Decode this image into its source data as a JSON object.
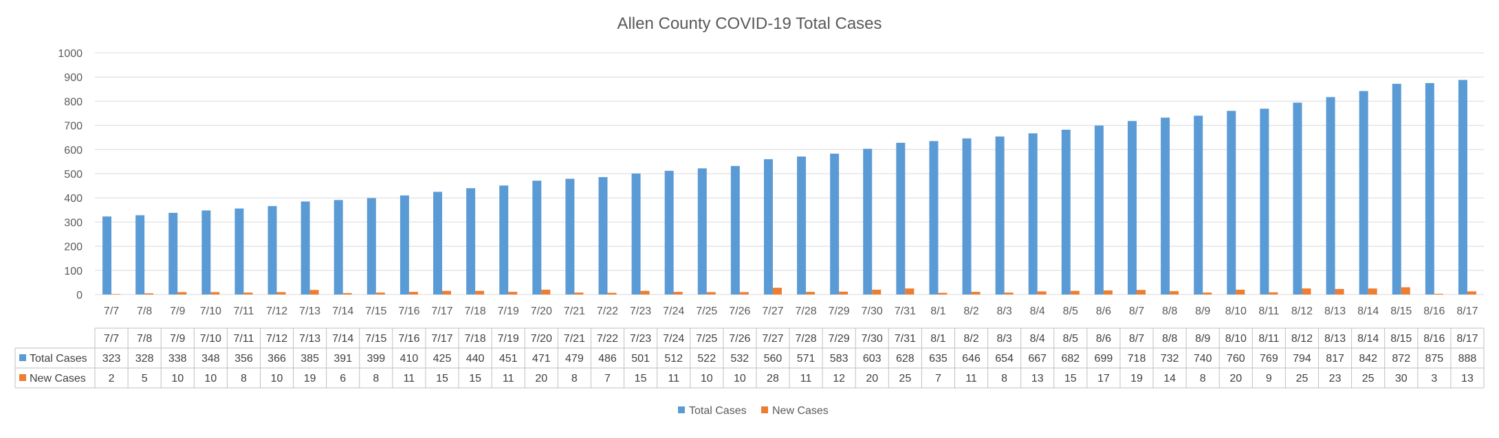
{
  "chart_data": {
    "type": "bar",
    "title": "Allen County COVID-19 Total Cases",
    "xlabel": "",
    "ylabel": "",
    "ylim": [
      0,
      1000
    ],
    "yticks": [
      0,
      100,
      200,
      300,
      400,
      500,
      600,
      700,
      800,
      900,
      1000
    ],
    "grid": true,
    "legend_position": "bottom",
    "categories": [
      "7/7",
      "7/8",
      "7/9",
      "7/10",
      "7/11",
      "7/12",
      "7/13",
      "7/14",
      "7/15",
      "7/16",
      "7/17",
      "7/18",
      "7/19",
      "7/20",
      "7/21",
      "7/22",
      "7/23",
      "7/24",
      "7/25",
      "7/26",
      "7/27",
      "7/28",
      "7/29",
      "7/30",
      "7/31",
      "8/1",
      "8/2",
      "8/3",
      "8/4",
      "8/5",
      "8/6",
      "8/7",
      "8/8",
      "8/9",
      "8/10",
      "8/11",
      "8/12",
      "8/13",
      "8/14",
      "8/15",
      "8/16",
      "8/17"
    ],
    "series": [
      {
        "name": "Total Cases",
        "color": "#5b9bd5",
        "values": [
          323,
          328,
          338,
          348,
          356,
          366,
          385,
          391,
          399,
          410,
          425,
          440,
          451,
          471,
          479,
          486,
          501,
          512,
          522,
          532,
          560,
          571,
          583,
          603,
          628,
          635,
          646,
          654,
          667,
          682,
          699,
          718,
          732,
          740,
          760,
          769,
          794,
          817,
          842,
          872,
          875,
          888
        ]
      },
      {
        "name": "New Cases",
        "color": "#ed7d31",
        "values": [
          2,
          5,
          10,
          10,
          8,
          10,
          19,
          6,
          8,
          11,
          15,
          15,
          11,
          20,
          8,
          7,
          15,
          11,
          10,
          10,
          28,
          11,
          12,
          20,
          25,
          7,
          11,
          8,
          13,
          15,
          17,
          19,
          14,
          8,
          20,
          9,
          25,
          23,
          25,
          30,
          3,
          13
        ]
      }
    ],
    "data_table": true
  }
}
